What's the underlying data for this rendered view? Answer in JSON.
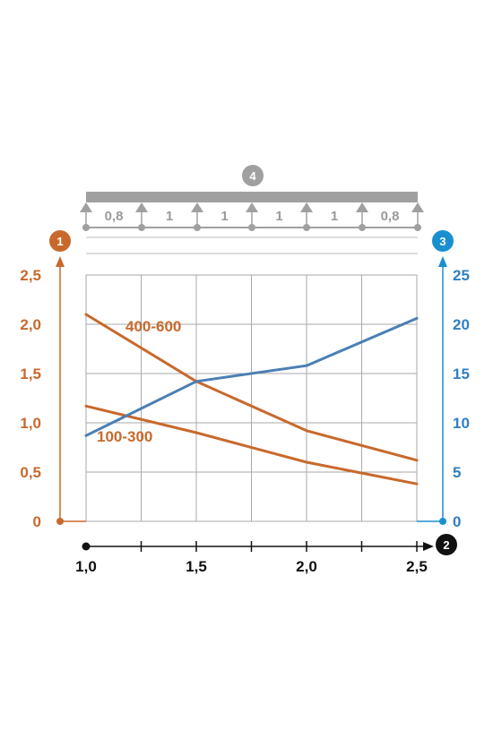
{
  "chart_data": {
    "type": "line",
    "x": [
      1.0,
      1.25,
      1.5,
      1.75,
      2.0,
      2.25,
      2.5
    ],
    "x_ticks": [
      "1,0",
      "1,5",
      "2,0",
      "2,5"
    ],
    "x_tick_values": [
      1.0,
      1.5,
      2.0,
      2.5
    ],
    "xlim": [
      1.0,
      2.5
    ],
    "y_left_ticks": [
      "0",
      "0,5",
      "1,0",
      "1,5",
      "2,0",
      "2,5"
    ],
    "y_left_tick_values": [
      0,
      0.5,
      1.0,
      1.5,
      2.0,
      2.5
    ],
    "ylim_left": [
      0,
      2.5
    ],
    "y_right_ticks": [
      "0",
      "5",
      "10",
      "15",
      "20",
      "25"
    ],
    "y_right_tick_values": [
      0,
      5,
      10,
      15,
      20,
      25
    ],
    "ylim_right": [
      0,
      25
    ],
    "grid": true,
    "series": [
      {
        "name": "400-600",
        "axis": "left",
        "color": "#c8692c",
        "x": [
          1.0,
          1.5,
          2.0,
          2.5
        ],
        "values": [
          2.1,
          1.42,
          0.92,
          0.62
        ]
      },
      {
        "name": "100-300",
        "axis": "left",
        "color": "#c8692c",
        "x": [
          1.0,
          1.5,
          2.0,
          2.5
        ],
        "values": [
          1.17,
          0.9,
          0.6,
          0.38
        ]
      },
      {
        "axis": "right",
        "color": "#4a7fb5",
        "x": [
          1.0,
          1.5,
          2.0,
          2.5
        ],
        "values": [
          8.7,
          14.2,
          15.8,
          20.6
        ]
      }
    ]
  },
  "badges": {
    "left": "1",
    "x": "2",
    "right": "3",
    "beam": "4"
  },
  "beam_spans": [
    "0,8",
    "1",
    "1",
    "1",
    "1",
    "0,8"
  ],
  "colors": {
    "left_axis": "#c8692c",
    "right_axis": "#1a8fd0",
    "beam": "#a0a0a0",
    "grid": "#aaaaaa"
  }
}
